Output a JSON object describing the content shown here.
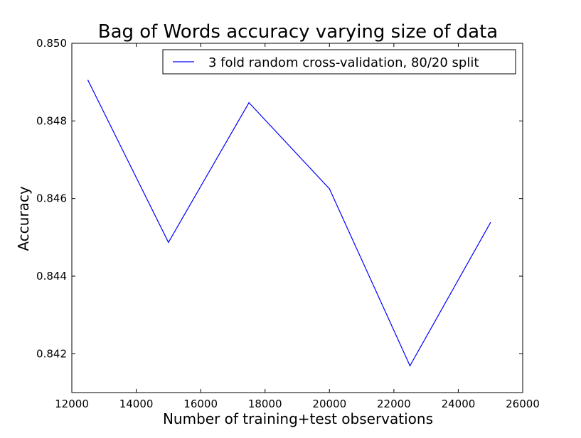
{
  "chart_data": {
    "type": "line",
    "title": "Bag of Words accuracy varying size of data",
    "xlabel": "Number of training+test observations",
    "ylabel": "Accuracy",
    "xlim": [
      12000,
      26000
    ],
    "ylim": [
      0.841,
      0.85
    ],
    "xticks": [
      12000,
      14000,
      16000,
      18000,
      20000,
      22000,
      24000,
      26000
    ],
    "xtick_labels": [
      "12000",
      "14000",
      "16000",
      "18000",
      "20000",
      "22000",
      "24000",
      "26000"
    ],
    "yticks": [
      0.842,
      0.844,
      0.846,
      0.848,
      0.85
    ],
    "ytick_labels": [
      "0.842",
      "0.844",
      "0.846",
      "0.848",
      "0.850"
    ],
    "grid": false,
    "legend_position": "top-right",
    "series": [
      {
        "name": "3 fold random cross-validation, 80/20 split",
        "color": "#0000ff",
        "x": [
          12500,
          15000,
          17500,
          20000,
          22500,
          25000
        ],
        "values": [
          0.84905,
          0.84487,
          0.84847,
          0.84625,
          0.84169,
          0.84538
        ]
      }
    ]
  }
}
